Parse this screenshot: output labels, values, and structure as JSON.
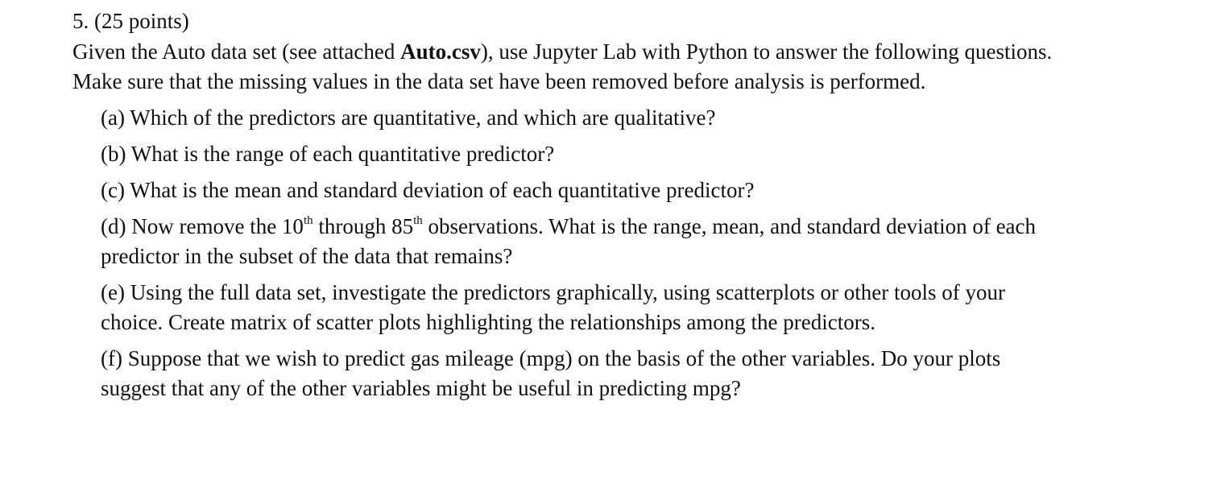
{
  "heading": "5. (25 points)",
  "intro": {
    "part1": "Given the Auto data set (see attached ",
    "file": "Auto.csv",
    "part2": "), use Jupyter Lab with Python to answer the following questions. Make sure that the missing values in the data set have been removed before analysis is performed."
  },
  "questions": {
    "a": "(a) Which of the predictors are quantitative, and which are qualitative?",
    "b": "(b) What is the range of each quantitative predictor?",
    "c": "(c) What is the mean and standard deviation of each quantitative predictor?",
    "d": {
      "part1": "(d) Now remove the 10",
      "sup1": "th",
      "part2": " through 85",
      "sup2": "th",
      "part3": " observations. What is the range, mean, and standard deviation of each predictor in the subset of the data that remains?"
    },
    "e": "(e) Using the full data set, investigate the predictors graphically, using scatterplots or other tools of your choice. Create matrix of scatter plots highlighting the relationships among the predictors.",
    "f": "(f) Suppose that we wish to predict gas mileage (mpg) on the basis of the other variables. Do your plots suggest that any of the other variables might be useful in predicting mpg?"
  }
}
